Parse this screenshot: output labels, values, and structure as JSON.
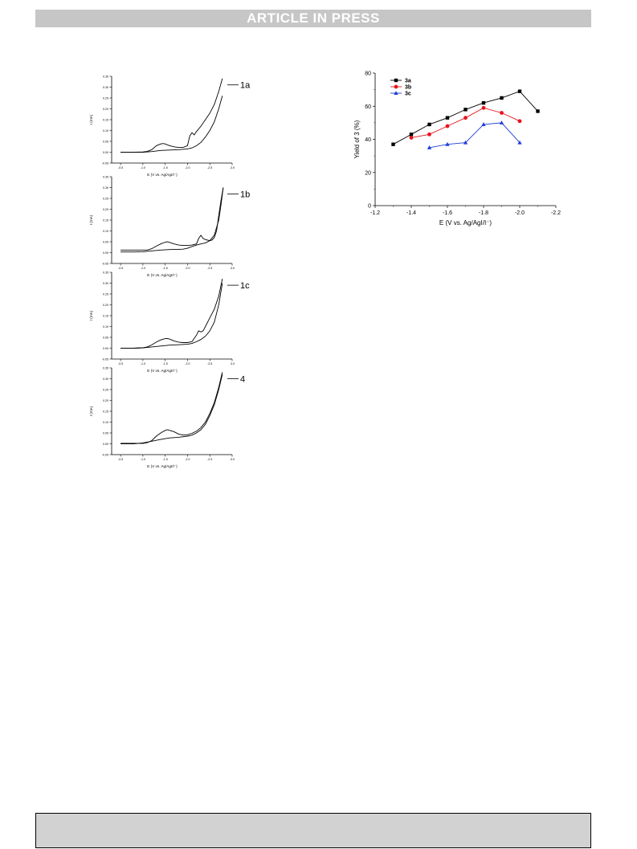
{
  "header": {
    "banner": "ARTICLE IN PRESS"
  },
  "chart_data": [
    {
      "type": "line",
      "title": "",
      "xlabel": "E (V vs. Ag/AgI/I⁻)",
      "ylabel": "I (mA)",
      "xlim": [
        -0.3,
        -3.0
      ],
      "ylim": [
        -0.05,
        0.35
      ],
      "xticks": [
        "-0.5",
        "-1.0",
        "-1.5",
        "-2.0",
        "-2.5",
        "-3.0"
      ],
      "yticks": [
        "-0.05",
        "0.00",
        "0.05",
        "0.10",
        "0.15",
        "0.20",
        "0.25",
        "0.30",
        "0.35"
      ],
      "panels": [
        {
          "label": "1a",
          "forward": [
            [
              -0.5,
              0.0
            ],
            [
              -0.8,
              0.0
            ],
            [
              -1.0,
              0.0
            ],
            [
              -1.2,
              0.003
            ],
            [
              -1.4,
              0.008
            ],
            [
              -1.6,
              0.01
            ],
            [
              -1.8,
              0.012
            ],
            [
              -2.0,
              0.015
            ],
            [
              -2.1,
              0.02
            ],
            [
              -2.2,
              0.03
            ],
            [
              -2.3,
              0.045
            ],
            [
              -2.4,
              0.07
            ],
            [
              -2.5,
              0.1
            ],
            [
              -2.6,
              0.14
            ],
            [
              -2.7,
              0.2
            ],
            [
              -2.78,
              0.26
            ]
          ],
          "reverse": [
            [
              -2.78,
              0.34
            ],
            [
              -2.7,
              0.28
            ],
            [
              -2.6,
              0.22
            ],
            [
              -2.5,
              0.18
            ],
            [
              -2.4,
              0.15
            ],
            [
              -2.3,
              0.12
            ],
            [
              -2.2,
              0.095
            ],
            [
              -2.15,
              0.08
            ],
            [
              -2.1,
              0.09
            ],
            [
              -2.05,
              0.075
            ],
            [
              -2.0,
              0.03
            ],
            [
              -1.9,
              0.022
            ],
            [
              -1.8,
              0.022
            ],
            [
              -1.7,
              0.025
            ],
            [
              -1.6,
              0.03
            ],
            [
              -1.5,
              0.038
            ],
            [
              -1.45,
              0.04
            ],
            [
              -1.4,
              0.038
            ],
            [
              -1.3,
              0.03
            ],
            [
              -1.2,
              0.012
            ],
            [
              -1.1,
              0.004
            ],
            [
              -1.0,
              0.001
            ],
            [
              -0.8,
              0.0
            ],
            [
              -0.5,
              0.0
            ]
          ]
        },
        {
          "label": "1b",
          "forward": [
            [
              -0.5,
              0.003
            ],
            [
              -0.8,
              0.003
            ],
            [
              -1.0,
              0.004
            ],
            [
              -1.2,
              0.008
            ],
            [
              -1.4,
              0.012
            ],
            [
              -1.6,
              0.014
            ],
            [
              -1.8,
              0.015
            ],
            [
              -1.9,
              0.016
            ],
            [
              -2.0,
              0.02
            ],
            [
              -2.1,
              0.028
            ],
            [
              -2.2,
              0.035
            ],
            [
              -2.3,
              0.04
            ],
            [
              -2.4,
              0.045
            ],
            [
              -2.5,
              0.055
            ],
            [
              -2.6,
              0.08
            ],
            [
              -2.7,
              0.15
            ],
            [
              -2.75,
              0.22
            ],
            [
              -2.8,
              0.3
            ]
          ],
          "reverse": [
            [
              -2.8,
              0.3
            ],
            [
              -2.75,
              0.24
            ],
            [
              -2.7,
              0.17
            ],
            [
              -2.65,
              0.1
            ],
            [
              -2.6,
              0.07
            ],
            [
              -2.55,
              0.058
            ],
            [
              -2.5,
              0.055
            ],
            [
              -2.4,
              0.06
            ],
            [
              -2.35,
              0.065
            ],
            [
              -2.3,
              0.08
            ],
            [
              -2.25,
              0.065
            ],
            [
              -2.2,
              0.04
            ],
            [
              -2.1,
              0.035
            ],
            [
              -2.0,
              0.033
            ],
            [
              -1.9,
              0.033
            ],
            [
              -1.8,
              0.035
            ],
            [
              -1.7,
              0.04
            ],
            [
              -1.6,
              0.047
            ],
            [
              -1.55,
              0.05
            ],
            [
              -1.5,
              0.048
            ],
            [
              -1.4,
              0.04
            ],
            [
              -1.3,
              0.03
            ],
            [
              -1.2,
              0.018
            ],
            [
              -1.1,
              0.012
            ],
            [
              -1.0,
              0.012
            ],
            [
              -0.8,
              0.012
            ],
            [
              -0.5,
              0.012
            ]
          ]
        },
        {
          "label": "1c",
          "forward": [
            [
              -0.5,
              0.0
            ],
            [
              -0.8,
              0.0
            ],
            [
              -1.0,
              0.002
            ],
            [
              -1.2,
              0.006
            ],
            [
              -1.4,
              0.01
            ],
            [
              -1.6,
              0.014
            ],
            [
              -1.8,
              0.016
            ],
            [
              -2.0,
              0.018
            ],
            [
              -2.1,
              0.022
            ],
            [
              -2.2,
              0.03
            ],
            [
              -2.3,
              0.04
            ],
            [
              -2.4,
              0.055
            ],
            [
              -2.5,
              0.08
            ],
            [
              -2.6,
              0.12
            ],
            [
              -2.7,
              0.2
            ],
            [
              -2.78,
              0.3
            ]
          ],
          "reverse": [
            [
              -2.78,
              0.32
            ],
            [
              -2.7,
              0.24
            ],
            [
              -2.6,
              0.18
            ],
            [
              -2.5,
              0.14
            ],
            [
              -2.4,
              0.1
            ],
            [
              -2.35,
              0.08
            ],
            [
              -2.3,
              0.075
            ],
            [
              -2.25,
              0.08
            ],
            [
              -2.2,
              0.06
            ],
            [
              -2.1,
              0.03
            ],
            [
              -2.0,
              0.026
            ],
            [
              -1.9,
              0.026
            ],
            [
              -1.8,
              0.028
            ],
            [
              -1.7,
              0.033
            ],
            [
              -1.6,
              0.042
            ],
            [
              -1.55,
              0.045
            ],
            [
              -1.5,
              0.044
            ],
            [
              -1.4,
              0.038
            ],
            [
              -1.3,
              0.028
            ],
            [
              -1.2,
              0.015
            ],
            [
              -1.1,
              0.006
            ],
            [
              -1.0,
              0.002
            ],
            [
              -0.8,
              0.0
            ],
            [
              -0.5,
              0.0
            ]
          ]
        },
        {
          "label": "4",
          "forward": [
            [
              -0.5,
              0.0
            ],
            [
              -0.8,
              0.0
            ],
            [
              -1.0,
              0.004
            ],
            [
              -1.2,
              0.012
            ],
            [
              -1.4,
              0.02
            ],
            [
              -1.6,
              0.027
            ],
            [
              -1.8,
              0.03
            ],
            [
              -2.0,
              0.035
            ],
            [
              -2.1,
              0.04
            ],
            [
              -2.2,
              0.05
            ],
            [
              -2.3,
              0.065
            ],
            [
              -2.4,
              0.09
            ],
            [
              -2.5,
              0.13
            ],
            [
              -2.6,
              0.18
            ],
            [
              -2.7,
              0.25
            ],
            [
              -2.78,
              0.32
            ]
          ],
          "reverse": [
            [
              -2.78,
              0.33
            ],
            [
              -2.7,
              0.26
            ],
            [
              -2.6,
              0.19
            ],
            [
              -2.5,
              0.14
            ],
            [
              -2.4,
              0.1
            ],
            [
              -2.3,
              0.075
            ],
            [
              -2.2,
              0.058
            ],
            [
              -2.1,
              0.048
            ],
            [
              -2.0,
              0.042
            ],
            [
              -1.9,
              0.04
            ],
            [
              -1.8,
              0.045
            ],
            [
              -1.7,
              0.055
            ],
            [
              -1.6,
              0.062
            ],
            [
              -1.55,
              0.065
            ],
            [
              -1.5,
              0.062
            ],
            [
              -1.4,
              0.05
            ],
            [
              -1.3,
              0.035
            ],
            [
              -1.2,
              0.015
            ],
            [
              -1.1,
              0.005
            ],
            [
              -1.0,
              0.002
            ],
            [
              -0.8,
              0.002
            ],
            [
              -0.5,
              0.002
            ]
          ]
        }
      ]
    },
    {
      "type": "line",
      "title": "",
      "xlabel": "E (V vs. Ag/AgI/I⁻)",
      "ylabel": "Yield of 3 (%)",
      "xlim": [
        -1.2,
        -2.2
      ],
      "ylim": [
        0,
        80
      ],
      "xticks": [
        "-1.2",
        "-1.4",
        "-1.6",
        "-1.8",
        "-2.0",
        "-2.2"
      ],
      "yticks": [
        "0",
        "20",
        "40",
        "60",
        "80"
      ],
      "legend_position": "top-left",
      "series": [
        {
          "name": "3a",
          "color": "#000000",
          "marker": "square",
          "x": [
            -1.3,
            -1.4,
            -1.5,
            -1.6,
            -1.7,
            -1.8,
            -1.9,
            -2.0,
            -2.1
          ],
          "y": [
            37,
            43,
            49,
            53,
            58,
            62,
            65,
            69,
            57
          ]
        },
        {
          "name": "3b",
          "color": "#e8141c",
          "marker": "circle",
          "x": [
            -1.4,
            -1.5,
            -1.6,
            -1.7,
            -1.8,
            -1.9,
            -2.0
          ],
          "y": [
            41,
            43,
            48,
            53,
            59,
            56,
            51
          ]
        },
        {
          "name": "3c",
          "color": "#1f3fd6",
          "marker": "triangle",
          "x": [
            -1.5,
            -1.6,
            -1.7,
            -1.8,
            -1.9,
            -2.0
          ],
          "y": [
            35,
            37,
            38,
            49,
            50,
            38
          ]
        }
      ]
    }
  ]
}
